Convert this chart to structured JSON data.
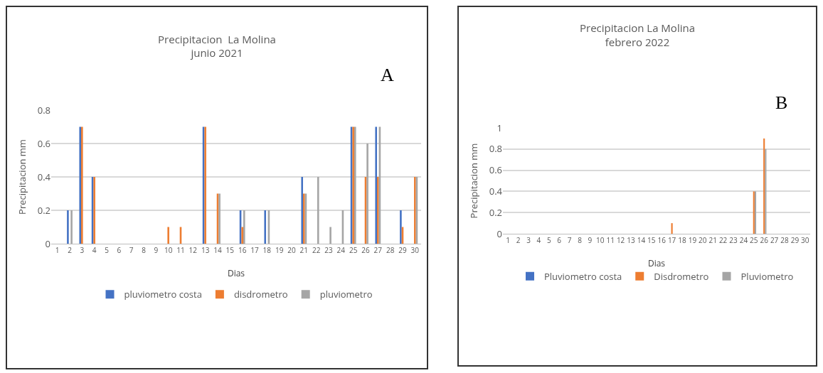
{
  "chart_data": [
    {
      "type": "bar",
      "title": "Precipitacion  La Molina\njunio 2021",
      "xlabel": "Dias",
      "ylabel": "Precipitacion mm",
      "annotations": [
        "A"
      ],
      "x": [
        1,
        2,
        3,
        4,
        5,
        6,
        7,
        8,
        9,
        10,
        11,
        12,
        13,
        14,
        15,
        16,
        17,
        18,
        19,
        20,
        21,
        22,
        23,
        24,
        25,
        26,
        27,
        28,
        29,
        30
      ],
      "xlim": [
        0.5,
        30.5
      ],
      "xticks": [
        1,
        2,
        3,
        4,
        5,
        6,
        7,
        8,
        9,
        10,
        11,
        12,
        13,
        14,
        15,
        16,
        17,
        18,
        19,
        20,
        21,
        22,
        23,
        24,
        25,
        26,
        27,
        28,
        29,
        30
      ],
      "series": [
        {
          "name": "pluviometro costa",
          "color": "#4472c4",
          "values": [
            0,
            0.2,
            0.7,
            0.4,
            0,
            0,
            0,
            0,
            0,
            0,
            0,
            0,
            0.7,
            0,
            0,
            0.2,
            0,
            0.2,
            0,
            0,
            0.4,
            0,
            0,
            0,
            0.7,
            0,
            0.7,
            0,
            0.2,
            0
          ]
        },
        {
          "name": "disdrometro",
          "color": "#ed7d31",
          "values": [
            0,
            0,
            0.7,
            0.4,
            0,
            0,
            0,
            0,
            0,
            0.1,
            0.1,
            0,
            0.7,
            0.3,
            0,
            0.1,
            0,
            0,
            0,
            0,
            0.3,
            0,
            0,
            0,
            0.7,
            0.4,
            0.4,
            0,
            0.1,
            0.4
          ]
        },
        {
          "name": "pluviometro",
          "color": "#a5a5a5",
          "values": [
            0,
            0.2,
            0,
            0,
            0,
            0,
            0,
            0,
            0,
            0,
            0,
            0,
            0,
            0.3,
            0,
            0.2,
            0,
            0.2,
            0,
            0,
            0.3,
            0.4,
            0.1,
            0.2,
            0.7,
            0.6,
            0.7,
            0,
            0,
            0.4
          ]
        }
      ],
      "ylim": [
        0,
        0.8
      ],
      "yticks": [
        0,
        0.2,
        0.4,
        0.6,
        0.8
      ],
      "grid": "y",
      "legend": "bottom"
    },
    {
      "type": "bar",
      "title": "Precipitacion La Molina\nfebrero 2022",
      "xlabel": "Dias",
      "ylabel": "Precipitacion mm",
      "annotations": [
        "B"
      ],
      "x": [
        1,
        2,
        3,
        4,
        5,
        6,
        7,
        8,
        9,
        10,
        11,
        12,
        13,
        14,
        15,
        16,
        17,
        18,
        19,
        20,
        21,
        22,
        23,
        24,
        25,
        26,
        27,
        28,
        29,
        30
      ],
      "xlim": [
        0.5,
        30.5
      ],
      "xticks": [
        1,
        2,
        3,
        4,
        5,
        6,
        7,
        8,
        9,
        10,
        11,
        12,
        13,
        14,
        15,
        16,
        17,
        18,
        19,
        20,
        21,
        22,
        23,
        24,
        25,
        26,
        27,
        28,
        29,
        30
      ],
      "series": [
        {
          "name": "Pluviometro costa",
          "color": "#4472c4",
          "values": [
            0,
            0,
            0,
            0,
            0,
            0,
            0,
            0,
            0,
            0,
            0,
            0,
            0,
            0,
            0,
            0,
            0,
            0,
            0,
            0,
            0,
            0,
            0,
            0,
            0,
            0,
            0,
            0,
            0,
            0
          ]
        },
        {
          "name": "Disdrometro",
          "color": "#ed7d31",
          "values": [
            0,
            0,
            0,
            0,
            0,
            0,
            0,
            0,
            0,
            0,
            0,
            0,
            0,
            0,
            0,
            0,
            0.1,
            0,
            0,
            0,
            0,
            0,
            0,
            0,
            0.4,
            0.9,
            0,
            0,
            0,
            0
          ]
        },
        {
          "name": "Pluviometro",
          "color": "#a5a5a5",
          "values": [
            0,
            0,
            0,
            0,
            0,
            0,
            0,
            0,
            0,
            0,
            0,
            0,
            0,
            0,
            0,
            0,
            0,
            0,
            0,
            0,
            0,
            0,
            0,
            0,
            0.4,
            0.8,
            0,
            0,
            0,
            0
          ]
        }
      ],
      "ylim": [
        0,
        1
      ],
      "yticks": [
        0,
        0.2,
        0.4,
        0.6,
        0.8,
        1
      ],
      "grid": "y",
      "legend": "bottom"
    }
  ]
}
